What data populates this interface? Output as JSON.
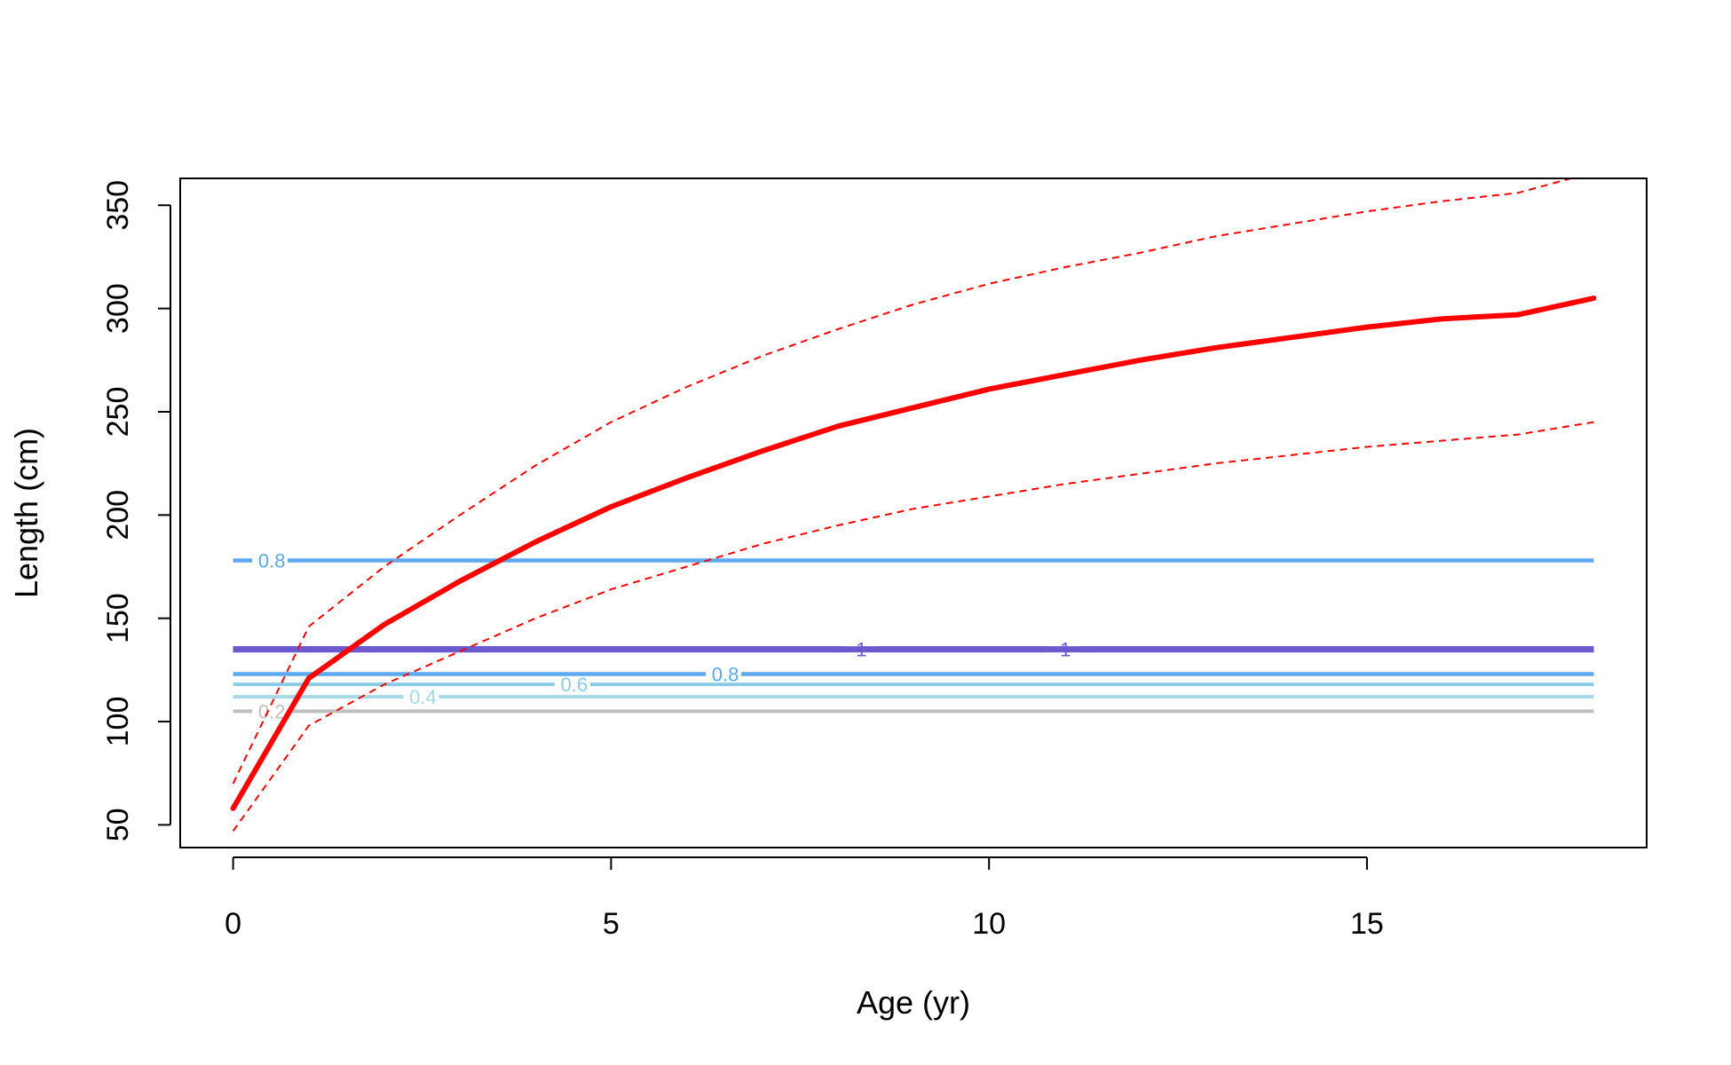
{
  "chart_data": {
    "type": "line",
    "xlabel": "Age (yr)",
    "ylabel": "Length (cm)",
    "xlim": [
      -0.7,
      18.7
    ],
    "ylim": [
      39,
      363
    ],
    "x_ticks": [
      0,
      5,
      10,
      15
    ],
    "y_ticks": [
      50,
      100,
      150,
      200,
      250,
      300,
      350
    ],
    "grid": false,
    "series": [
      {
        "style": "solid-thick",
        "color": "#ff0000",
        "x": [
          0,
          1,
          2,
          3,
          4,
          5,
          6,
          7,
          8,
          9,
          10,
          11,
          12,
          13,
          14,
          15,
          16,
          17,
          18
        ],
        "y": [
          58,
          121,
          147,
          168,
          187,
          204,
          218,
          231,
          243,
          252,
          261,
          268,
          275,
          281,
          286,
          291,
          295,
          297,
          305
        ]
      },
      {
        "style": "dashed-upper",
        "color": "#ff0000",
        "x": [
          0,
          1,
          2,
          3,
          4,
          5,
          6,
          7,
          8,
          9,
          10,
          11,
          12,
          13,
          14,
          15,
          16,
          17,
          18
        ],
        "y": [
          70,
          146,
          175,
          200,
          224,
          245,
          262,
          277,
          290,
          302,
          312,
          320,
          327,
          335,
          341,
          347,
          352,
          356,
          366
        ]
      },
      {
        "style": "dashed-lower",
        "color": "#ff0000",
        "x": [
          0,
          1,
          2,
          3,
          4,
          5,
          6,
          7,
          8,
          9,
          10,
          11,
          12,
          13,
          14,
          15,
          16,
          17,
          18
        ],
        "y": [
          47,
          98,
          118,
          134,
          150,
          164,
          175,
          186,
          195,
          203,
          209,
          215,
          220,
          225,
          229,
          233,
          236,
          239,
          245
        ]
      }
    ],
    "contours": [
      {
        "level_label": "0.2",
        "y": 105,
        "color": "#bebebe",
        "width": 4,
        "label_x": 0.3
      },
      {
        "level_label": "0.4",
        "y": 112,
        "color": "#a6d8e8",
        "width": 4,
        "label_x": 2.3
      },
      {
        "level_label": "0.6",
        "y": 118,
        "color": "#8ccbe6",
        "width": 4,
        "label_x": 4.3
      },
      {
        "level_label": "0.8",
        "y": 123,
        "color": "#5ca9f0",
        "width": 4.5,
        "label_x": 6.3
      },
      {
        "level_label": "1",
        "y": 135,
        "color": "#6a5acd",
        "width": 7,
        "label_x": 8.1
      },
      {
        "level_label": "1",
        "y": 135,
        "color": "#6a5acd",
        "width": 7,
        "label_x": 10.8
      },
      {
        "level_label": "0.8",
        "y": 178,
        "color": "#5ca9f0",
        "width": 4.5,
        "label_x": 0.3
      }
    ]
  }
}
